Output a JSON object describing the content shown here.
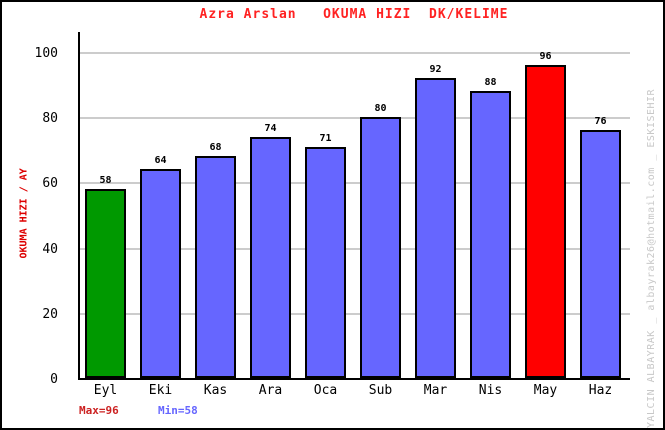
{
  "title": {
    "text": "Azra Arslan   OKUMA HIZI  DK/KELIME"
  },
  "y_axis": {
    "label": "OKUMA HIZI / AY",
    "ticks": [
      0,
      20,
      40,
      60,
      80,
      100
    ]
  },
  "x_axis": {
    "labels": [
      "Eyl",
      "Eki",
      "Kas",
      "Ara",
      "Oca",
      "Sub",
      "Mar",
      "Nis",
      "May",
      "Haz"
    ]
  },
  "footer": {
    "max_label": "Max=96",
    "min_label": "Min=58"
  },
  "watermark": "YALCIN ALBAYRAK _ albayrak26@hotmail.com _ ESKISEHIR",
  "colors": {
    "bar_default": "#6666FF",
    "bar_min": "#009900",
    "bar_max": "#FF0000",
    "bar_border": "#000000",
    "title_text": "#FF2222",
    "y_axis_label_text": "#DD0000",
    "max_text": "#CC2222",
    "min_text": "#6666FF",
    "gridline": "#CCCCCC",
    "watermark_text": "#C8C8C8"
  },
  "chart_data": {
    "type": "bar",
    "title": "Azra Arslan  OKUMA HIZI  DK/KELIME",
    "categories": [
      "Eyl",
      "Eki",
      "Kas",
      "Ara",
      "Oca",
      "Sub",
      "Mar",
      "Nis",
      "May",
      "Haz"
    ],
    "values": [
      58,
      64,
      68,
      74,
      71,
      80,
      92,
      88,
      96,
      76
    ],
    "bar_colors": [
      "#009900",
      "#6666FF",
      "#6666FF",
      "#6666FF",
      "#6666FF",
      "#6666FF",
      "#6666FF",
      "#6666FF",
      "#FF0000",
      "#6666FF"
    ],
    "xlabel": "",
    "ylabel": "OKUMA HIZI / AY",
    "ylim": [
      0,
      106
    ],
    "yticks": [
      0,
      20,
      40,
      60,
      80,
      100
    ],
    "grid": true,
    "legend": false,
    "annotations": {
      "max": 96,
      "min": 58
    }
  }
}
